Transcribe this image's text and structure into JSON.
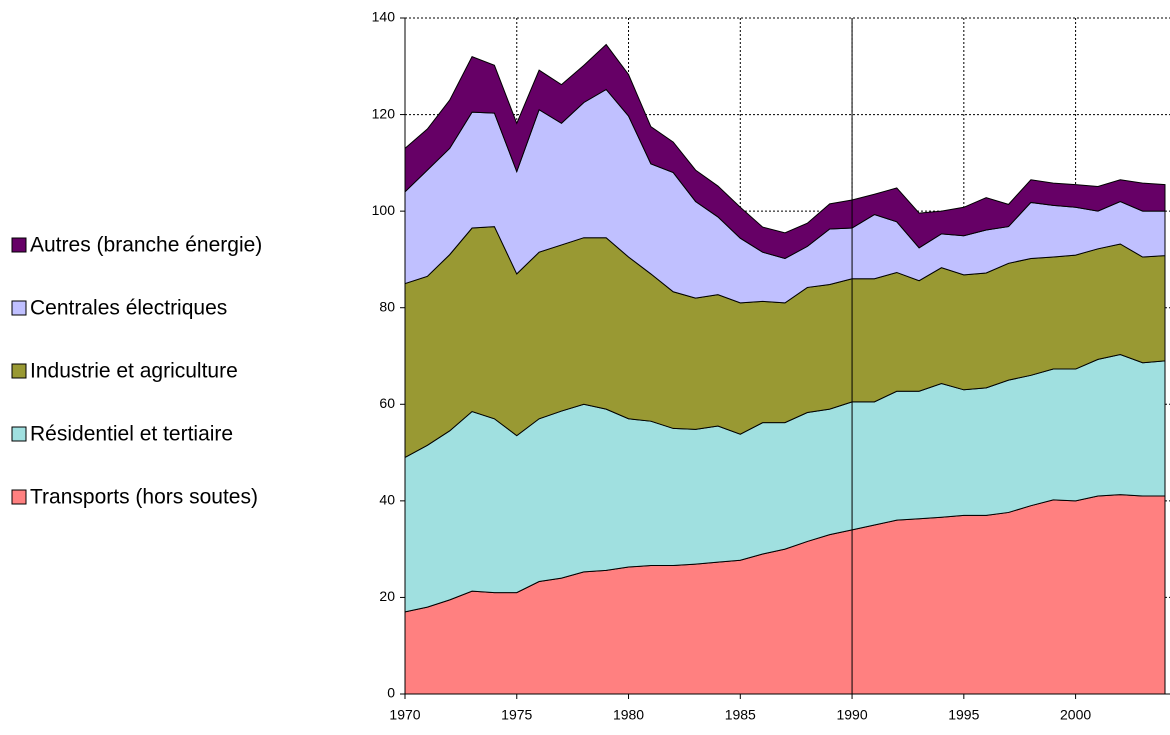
{
  "chart_data": {
    "type": "stacked_area",
    "x": [
      1970,
      1971,
      1972,
      1973,
      1974,
      1975,
      1976,
      1977,
      1978,
      1979,
      1980,
      1981,
      1982,
      1983,
      1984,
      1985,
      1986,
      1987,
      1988,
      1989,
      1990,
      1991,
      1992,
      1993,
      1994,
      1995,
      1996,
      1997,
      1998,
      1999,
      2000,
      2001,
      2002,
      2003,
      2004
    ],
    "series": [
      {
        "name": "Transports (hors soutes)",
        "color": "#ff8080",
        "values": [
          17,
          18,
          19.5,
          21.3,
          21,
          21,
          23.3,
          24,
          25.3,
          25.6,
          26.3,
          26.6,
          26.6,
          26.9,
          27.3,
          27.7,
          29,
          30,
          31.6,
          33,
          34,
          35,
          36,
          36.3,
          36.6,
          37,
          37,
          37.6,
          39,
          40.2,
          40,
          41,
          41.3,
          41,
          41
        ]
      },
      {
        "name": "Résidentiel et tertiaire",
        "color": "#a0e0e0",
        "values": [
          32,
          33.5,
          35,
          37.2,
          36,
          32.5,
          33.7,
          34.6,
          34.7,
          33.4,
          30.7,
          29.9,
          28.4,
          27.9,
          28.2,
          26.1,
          27.2,
          26.2,
          26.7,
          26,
          26.5,
          25.5,
          26.7,
          26.4,
          27.7,
          26,
          26.4,
          27.4,
          27,
          27.1,
          27.3,
          28.3,
          29,
          27.6,
          28
        ]
      },
      {
        "name": "Industrie et agriculture",
        "color": "#999933",
        "values": [
          36,
          35,
          36.5,
          38,
          39.8,
          33.5,
          34.5,
          34.4,
          34.5,
          35.5,
          33.5,
          30.5,
          28.3,
          27.2,
          27.2,
          27.2,
          25.1,
          24.8,
          25.9,
          25.8,
          25.5,
          25.5,
          24.6,
          22.9,
          24,
          23.8,
          23.8,
          24.2,
          24.2,
          23.2,
          23.6,
          22.9,
          22.9,
          21.9,
          21.8
        ]
      },
      {
        "name": "Centrales électriques",
        "color": "#c0c0ff",
        "values": [
          19,
          22,
          22,
          24,
          23.5,
          21.2,
          29.5,
          25.2,
          28,
          30.7,
          29.2,
          22.8,
          24.7,
          20,
          16.1,
          13.4,
          10.2,
          9.2,
          8.5,
          11.5,
          10.5,
          13.3,
          10.5,
          6.8,
          7,
          8.1,
          8.9,
          7.6,
          11.6,
          10.7,
          9.9,
          7.8,
          8.8,
          9.5,
          9.2
        ]
      },
      {
        "name": "Autres (branche énergie)",
        "color": "#660066",
        "values": [
          9,
          8.5,
          10,
          11.5,
          9.9,
          10,
          8.2,
          8,
          7.7,
          9.3,
          8.6,
          7.7,
          6.3,
          6.5,
          6.4,
          6.4,
          5.2,
          5.3,
          4.8,
          5.2,
          5.8,
          4.2,
          7,
          7.2,
          4.7,
          5.9,
          6.7,
          4.6,
          4.7,
          4.6,
          4.7,
          5.1,
          4.5,
          5.8,
          5.5
        ]
      }
    ],
    "xlim": [
      1970,
      2004
    ],
    "xticks": [
      1970,
      1975,
      1980,
      1985,
      1990,
      1995,
      2000
    ],
    "ylim": [
      0,
      140
    ],
    "yticks": [
      0,
      20,
      40,
      60,
      80,
      100,
      120,
      140
    ],
    "grid": true,
    "vline_x": 1990,
    "legend": "left"
  }
}
